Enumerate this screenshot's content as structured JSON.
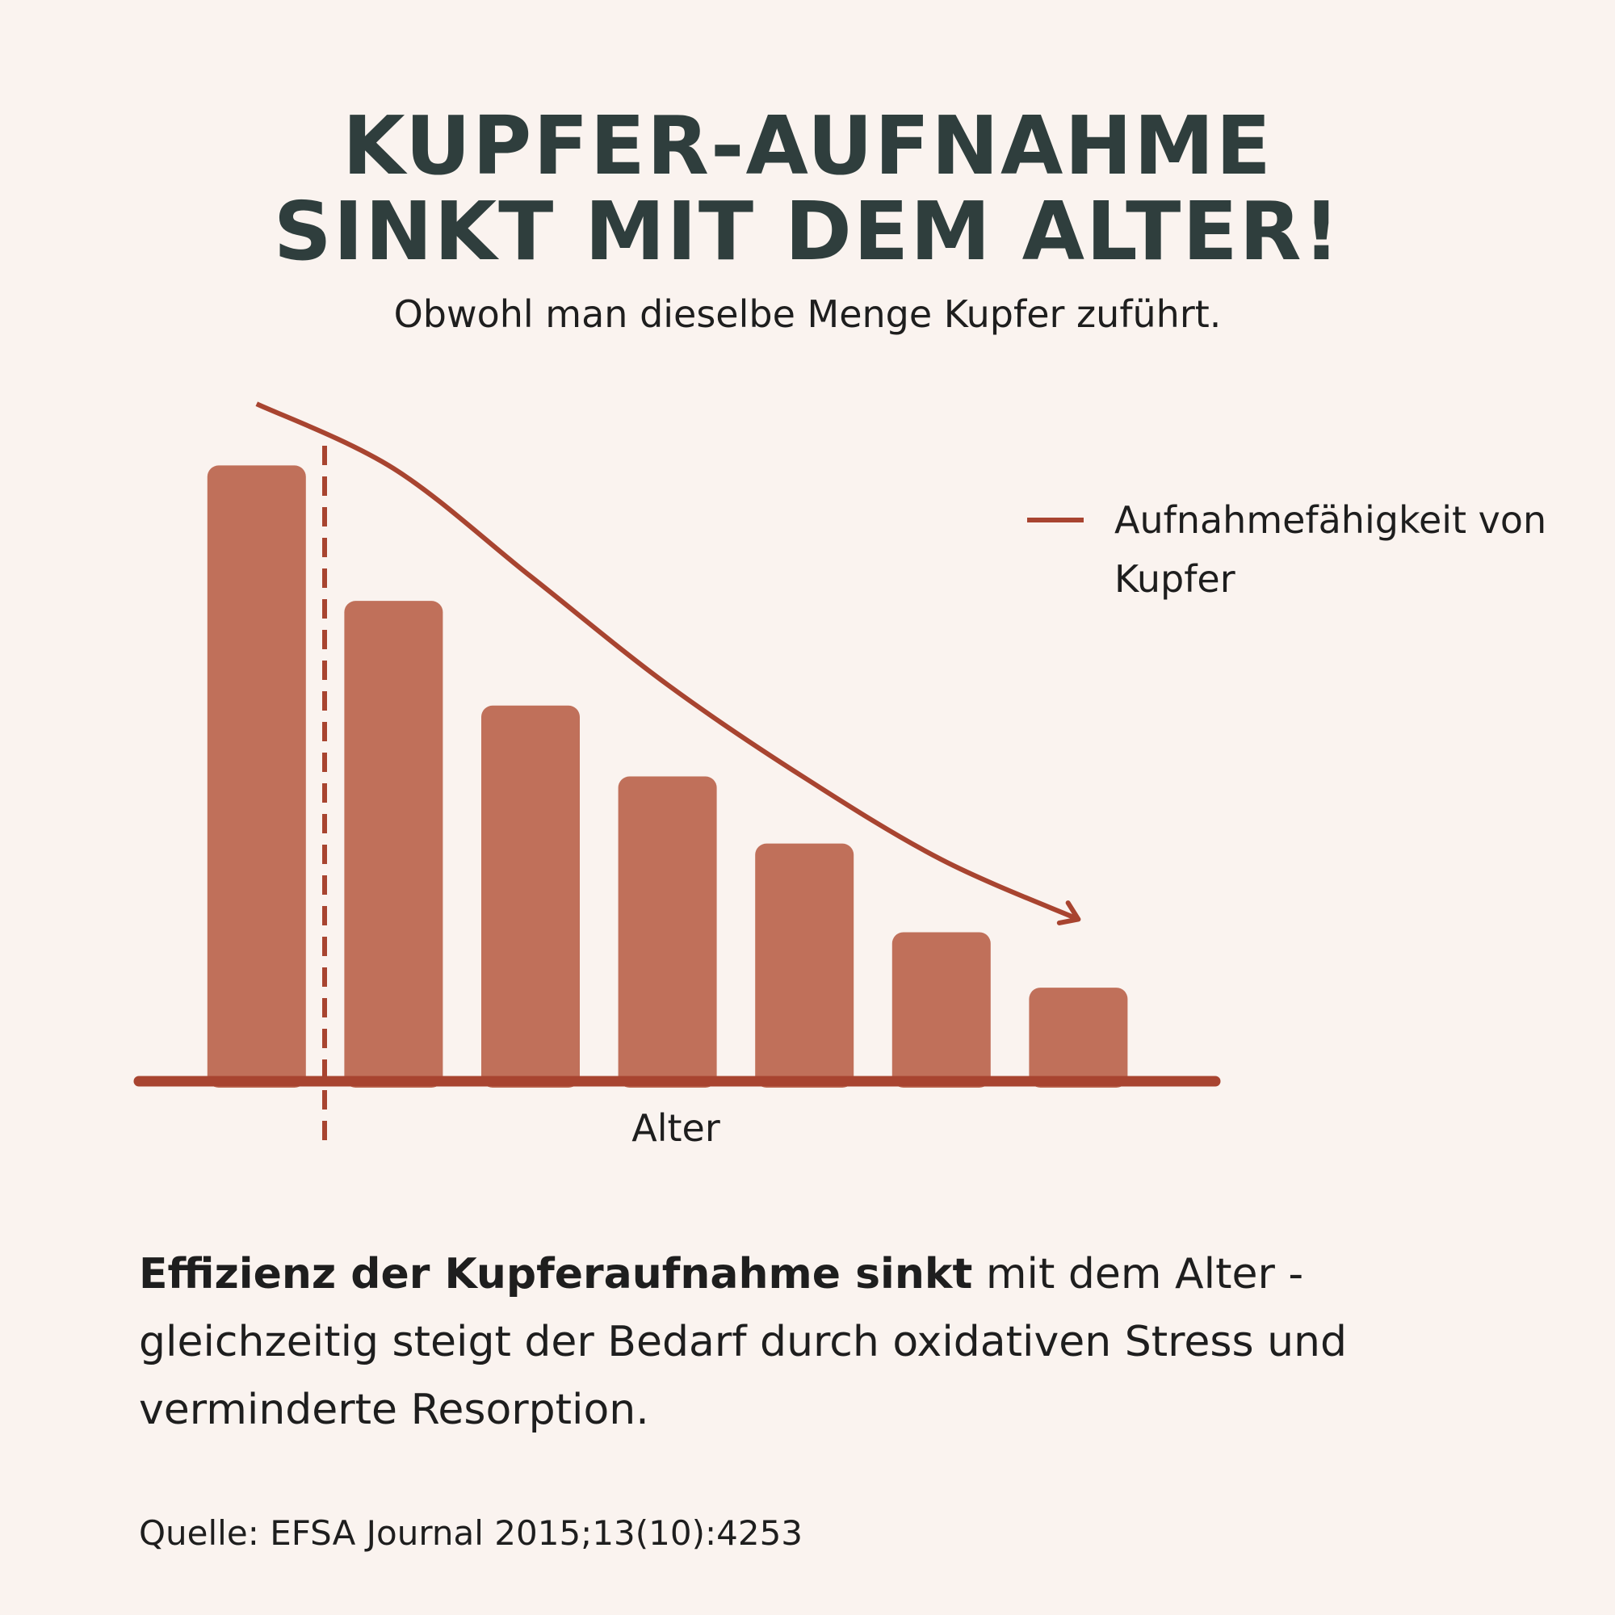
{
  "chart_data": {
    "type": "bar",
    "title_lines": [
      "KUPFER-AUFNAHME",
      "SINKT MIT DEM ALTER!"
    ],
    "subtitle": "Obwohl man dieselbe Menge Kupfer zuführt.",
    "xlabel": "Alter",
    "categories": [
      null,
      null,
      null,
      null,
      null,
      null,
      null
    ],
    "values": [
      100,
      78,
      61,
      49.5,
      38.6,
      24.2,
      15.2
    ],
    "color": "#c0705a",
    "ylim": [
      0,
      115
    ],
    "series": [
      {
        "name": "Aufnahmefähigkeit von Kupfer",
        "type": "line",
        "color": "#a84430",
        "values": [
          110,
          99.5,
          82,
          64.4,
          49.3,
          36,
          26.3
        ]
      }
    ],
    "legend": "upper right"
  },
  "body": {
    "bold": "Effizienz der Kupferaufnahme sinkt",
    "rest": "mit dem Alter - gleichzeitig steigt der Bedarf durch oxidativen Stress und verminderte Resorption."
  },
  "source": "Quelle: EFSA Journal 2015;13(10):4253"
}
